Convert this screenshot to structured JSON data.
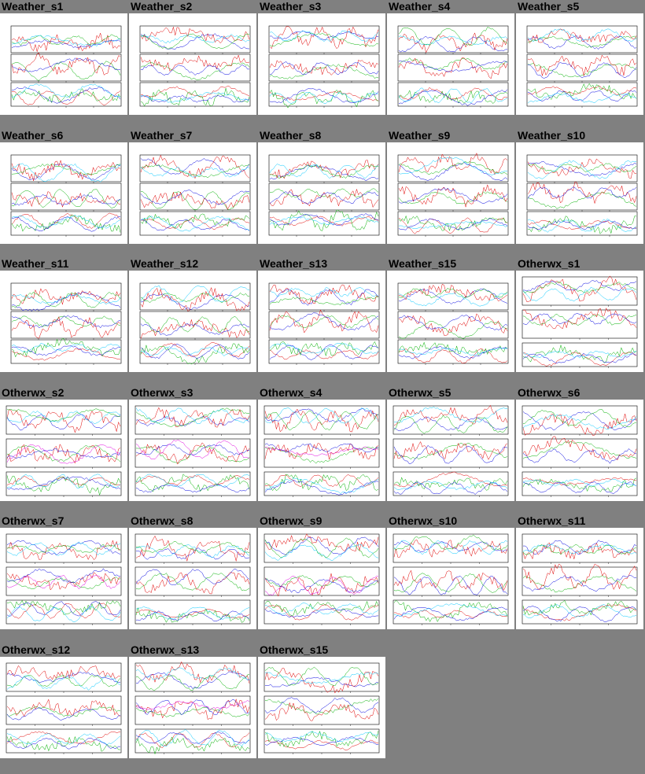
{
  "page": {
    "background": "#808080"
  },
  "colors": {
    "red": "#e00000",
    "green": "#00b000",
    "blue": "#0000e0",
    "cyan": "#00c8ff",
    "magenta": "#e000e0",
    "frame": "#000000"
  },
  "thumbnails": [
    {
      "label": "Weather_s1",
      "style": "weather"
    },
    {
      "label": "Weather_s2",
      "style": "weather"
    },
    {
      "label": "Weather_s3",
      "style": "weather"
    },
    {
      "label": "Weather_s4",
      "style": "weather"
    },
    {
      "label": "Weather_s5",
      "style": "weather"
    },
    {
      "label": "Weather_s6",
      "style": "weather"
    },
    {
      "label": "Weather_s7",
      "style": "weather"
    },
    {
      "label": "Weather_s8",
      "style": "weather"
    },
    {
      "label": "Weather_s9",
      "style": "weather"
    },
    {
      "label": "Weather_s10",
      "style": "weather"
    },
    {
      "label": "Weather_s11",
      "style": "weather"
    },
    {
      "label": "Weather_s12",
      "style": "weather"
    },
    {
      "label": "Weather_s13",
      "style": "weather"
    },
    {
      "label": "Weather_s15",
      "style": "weather"
    },
    {
      "label": "Otherwx_s1",
      "style": "otherwx"
    },
    {
      "label": "Otherwx_s2",
      "style": "otherwx"
    },
    {
      "label": "Otherwx_s3",
      "style": "otherwx"
    },
    {
      "label": "Otherwx_s4",
      "style": "otherwx"
    },
    {
      "label": "Otherwx_s5",
      "style": "otherwx"
    },
    {
      "label": "Otherwx_s6",
      "style": "otherwx"
    },
    {
      "label": "Otherwx_s7",
      "style": "otherwx"
    },
    {
      "label": "Otherwx_s8",
      "style": "otherwx"
    },
    {
      "label": "Otherwx_s9",
      "style": "otherwx"
    },
    {
      "label": "Otherwx_s10",
      "style": "otherwx"
    },
    {
      "label": "Otherwx_s11",
      "style": "otherwx"
    },
    {
      "label": "Otherwx_s12",
      "style": "otherwx"
    },
    {
      "label": "Otherwx_s13",
      "style": "otherwx"
    },
    {
      "label": "Otherwx_s15",
      "style": "otherwx"
    }
  ]
}
